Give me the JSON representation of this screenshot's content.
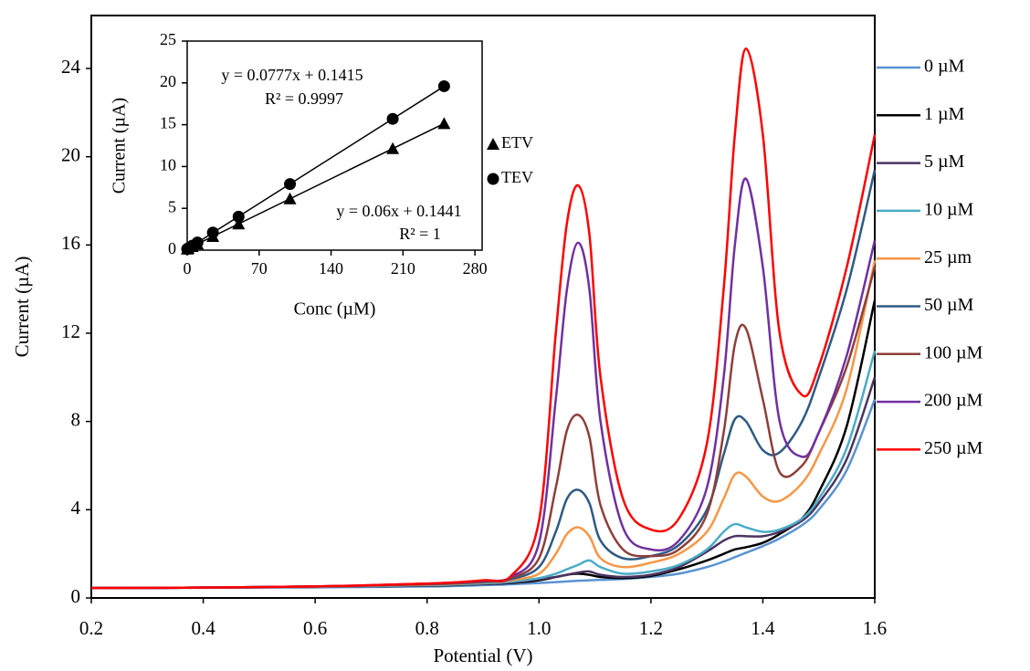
{
  "chart_data": [
    {
      "type": "line",
      "x_label": "Potential (V)",
      "y_label": "Current (µA)",
      "xlim": [
        0.2,
        1.6
      ],
      "ylim": [
        0,
        26.4
      ],
      "xticks": [
        0.2,
        0.4,
        0.6,
        0.8,
        {
          "value": 1,
          "label": "1.0"
        },
        1.2,
        1.4,
        1.6
      ],
      "yticks": [
        0,
        4,
        8,
        12,
        16,
        20,
        24
      ],
      "grid": false,
      "legend": "right",
      "x": [
        0.2,
        0.4,
        0.6,
        0.8,
        0.9,
        0.95,
        1.0,
        1.03,
        1.05,
        1.07,
        1.09,
        1.11,
        1.15,
        1.2,
        1.25,
        1.3,
        1.33,
        1.35,
        1.37,
        1.4,
        1.43,
        1.47,
        1.5,
        1.55,
        1.6
      ],
      "series": [
        {
          "name": "0 µM",
          "color": "#5a93d0",
          "values": [
            0.45,
            0.46,
            0.48,
            0.52,
            0.58,
            0.62,
            0.68,
            0.72,
            0.75,
            0.78,
            0.8,
            0.82,
            0.86,
            0.95,
            1.1,
            1.4,
            1.65,
            1.85,
            2.05,
            2.35,
            2.7,
            3.3,
            4.0,
            5.8,
            9
          ]
        },
        {
          "name": "1 µM",
          "color": "#000000",
          "values": [
            0.45,
            0.47,
            0.5,
            0.56,
            0.63,
            0.68,
            0.8,
            0.95,
            1.05,
            1.1,
            1.05,
            0.95,
            0.9,
            1.0,
            1.3,
            1.7,
            2.0,
            2.2,
            2.3,
            2.5,
            2.9,
            3.6,
            4.8,
            7.8,
            13.5
          ]
        },
        {
          "name": "5 µM",
          "color": "#4b3461",
          "values": [
            0.45,
            0.47,
            0.5,
            0.57,
            0.64,
            0.7,
            0.85,
            0.95,
            1.05,
            1.15,
            1.2,
            1.05,
            0.95,
            1.05,
            1.4,
            2.1,
            2.6,
            2.8,
            2.8,
            2.8,
            3,
            3.5,
            4.3,
            6.3,
            10
          ]
        },
        {
          "name": "10 µM",
          "color": "#4bacc6",
          "values": [
            0.45,
            0.47,
            0.5,
            0.58,
            0.66,
            0.74,
            0.9,
            1.1,
            1.3,
            1.5,
            1.7,
            1.4,
            1.1,
            1.2,
            1.5,
            2.2,
            3,
            3.35,
            3.2,
            3,
            3.1,
            3.6,
            4.5,
            6.8,
            11.2
          ]
        },
        {
          "name": "25 µm",
          "color": "#f79646",
          "values": [
            0.45,
            0.47,
            0.52,
            0.6,
            0.7,
            0.8,
            1.1,
            2,
            2.9,
            3.2,
            2.8,
            1.8,
            1.4,
            1.6,
            2,
            3,
            4.5,
            5.6,
            5.5,
            4.6,
            4.4,
            5.2,
            6.5,
            9.5,
            15.3
          ]
        },
        {
          "name": "50 µM",
          "color": "#2f5a83",
          "values": [
            0.45,
            0.47,
            0.52,
            0.62,
            0.72,
            0.85,
            1.4,
            3,
            4.5,
            4.9,
            4.3,
            2.6,
            1.8,
            1.9,
            2.4,
            4,
            6.5,
            8.1,
            8,
            6.7,
            6.6,
            8,
            10,
            14,
            19.4
          ]
        },
        {
          "name": "100 µM",
          "color": "#8e3f3b",
          "values": [
            0.45,
            0.47,
            0.52,
            0.63,
            0.75,
            0.9,
            1.8,
            5,
            7.6,
            8.3,
            7.3,
            4.2,
            2.2,
            1.9,
            2.2,
            3.8,
            7.5,
            11.5,
            12.2,
            9,
            5.7,
            6,
            7.5,
            10.5,
            15
          ]
        },
        {
          "name": "200 µM",
          "color": "#7030a0",
          "values": [
            0.45,
            0.47,
            0.52,
            0.65,
            0.78,
            0.95,
            2.5,
            9,
            14,
            16.1,
            14,
            8,
            3.2,
            2.2,
            2.6,
            5,
            10,
            16,
            19,
            15,
            8,
            6.4,
            7.5,
            11,
            16.2
          ]
        },
        {
          "name": "250 µM",
          "color": "#ff0000",
          "values": [
            0.45,
            0.47,
            0.52,
            0.65,
            0.8,
            1.0,
            3.5,
            12,
            17,
            18.7,
            16.5,
            10,
            4.5,
            3.1,
            3.6,
            7,
            14,
            21,
            24.9,
            21,
            12,
            9.2,
            10.5,
            15,
            21
          ]
        }
      ]
    },
    {
      "type": "scatter",
      "x_label": "Conc  (µM)",
      "y_label": "Current (µA)",
      "xlim": [
        0,
        287
      ],
      "ylim": [
        0,
        25
      ],
      "xticks": [
        0,
        70,
        140,
        210,
        280
      ],
      "yticks": [
        0,
        5,
        10,
        15,
        20,
        25
      ],
      "trendline": "linear",
      "legend": "right",
      "x": [
        0,
        1,
        5,
        10,
        25,
        50,
        100,
        200,
        250
      ],
      "series": [
        {
          "name": "ETV",
          "color": "#000000",
          "marker": "triangle",
          "values": [
            0.14,
            0.2,
            0.44,
            0.74,
            1.64,
            3.14,
            6.14,
            12.14,
            15.14
          ]
        },
        {
          "name": "TEV",
          "color": "#000000",
          "marker": "circle",
          "values": [
            0.14,
            0.22,
            0.53,
            0.92,
            2.1,
            4.0,
            7.9,
            15.7,
            19.6
          ]
        }
      ],
      "annotations": [
        "y = 0.0777x + 0.1415",
        "R² = 0.9997",
        "y = 0.06x + 0.1441",
        "R² = 1"
      ]
    }
  ]
}
